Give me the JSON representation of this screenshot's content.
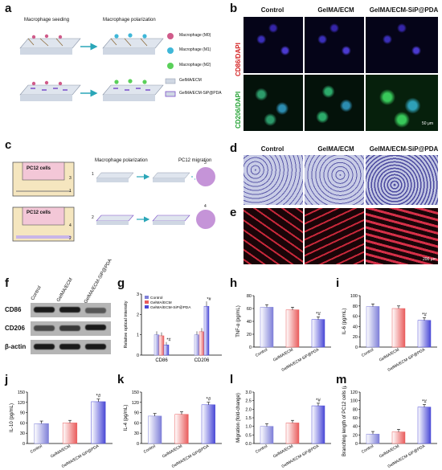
{
  "panel_letters": {
    "a": "a",
    "b": "b",
    "c": "c",
    "d": "d",
    "e": "e",
    "f": "f",
    "g": "g",
    "h": "h",
    "i": "i",
    "j": "j",
    "k": "k",
    "l": "l",
    "m": "m"
  },
  "panel_a": {
    "seeding": "Macrophage seeding",
    "polarization": "Macrophage polarization",
    "legend": [
      "Macrophage (M0)",
      "Macrophage (M1)",
      "Macrophage (M2)",
      "GelMA/ECM",
      "GelMA/ECM-SiP@PDA"
    ]
  },
  "columns": [
    "Control",
    "GelMA/ECM",
    "GelMA/ECM-SiP@PDA"
  ],
  "panel_b": {
    "row1_label": "CD86/DAPI",
    "row2_label": "CD206/DAPI",
    "scale": "50 μm"
  },
  "panel_c": {
    "pc12": "PC12 cells",
    "polarization": "Macrophage polarization",
    "migration": "PC12 migration",
    "nums": [
      "1",
      "2",
      "3",
      "4",
      "3",
      "1",
      "4",
      "2"
    ]
  },
  "panel_e": {
    "scale": "200 μm"
  },
  "panel_f": {
    "lanes": [
      "Control",
      "GelMA/ECM",
      "GelMA/ECM-SiP@PDA"
    ],
    "rows": [
      "CD86",
      "CD206",
      "β-actin"
    ]
  },
  "colors": {
    "control": "#7e7fd8",
    "gelma": "#e95c5c",
    "sip": "#4a49d6"
  },
  "chart_data": [
    {
      "id": "g",
      "type": "bar",
      "ylabel": "Relative optical intensity",
      "categories": [
        "CD86",
        "CD206"
      ],
      "ylim": [
        0,
        3
      ],
      "yticks": [
        "0",
        "1",
        "2",
        "3"
      ],
      "series": [
        {
          "name": "Control",
          "values": [
            1.0,
            1.0
          ]
        },
        {
          "name": "GelMA/ECM",
          "values": [
            0.95,
            1.15
          ]
        },
        {
          "name": "GelMA/ECM-SiP@PDA",
          "values": [
            0.5,
            2.4
          ]
        }
      ],
      "annotations": [
        "*#",
        "*#"
      ]
    },
    {
      "id": "h",
      "type": "bar",
      "ylabel": "TNF-α (pg/mL)",
      "categories": [
        "Control",
        "GelMA/ECM",
        "GelMA/ECM-SiP@PDA"
      ],
      "values": [
        62,
        58,
        43
      ],
      "ylim": [
        0,
        80
      ],
      "yticks": [
        "0",
        "20",
        "40",
        "60",
        "80"
      ],
      "annotation": "*#"
    },
    {
      "id": "i",
      "type": "bar",
      "ylabel": "IL-6 (pg/mL)",
      "categories": [
        "Control",
        "GelMA/ECM",
        "GelMA/ECM-SiP@PDA"
      ],
      "values": [
        79,
        75,
        52
      ],
      "ylim": [
        0,
        100
      ],
      "yticks": [
        "0",
        "20",
        "40",
        "60",
        "80",
        "100"
      ],
      "annotation": "*#"
    },
    {
      "id": "j",
      "type": "bar",
      "ylabel": "IL-10 (pg/mL)",
      "categories": [
        "Control",
        "GelMA/ECM",
        "GelMA/ECM-SiP@PDA"
      ],
      "values": [
        58,
        60,
        122
      ],
      "ylim": [
        0,
        150
      ],
      "yticks": [
        "0",
        "30",
        "60",
        "90",
        "120",
        "150"
      ],
      "annotation": "*#"
    },
    {
      "id": "k",
      "type": "bar",
      "ylabel": "IL-4 (pg/mL)",
      "categories": [
        "Control",
        "GelMA/ECM",
        "GelMA/ECM-SiP@PDA"
      ],
      "values": [
        80,
        85,
        113
      ],
      "ylim": [
        0,
        150
      ],
      "yticks": [
        "0",
        "30",
        "60",
        "90",
        "120",
        "150"
      ],
      "annotation": "*#"
    },
    {
      "id": "l",
      "type": "bar",
      "ylabel": "Migration (fold-change)",
      "categories": [
        "Control",
        "GelMA/ECM",
        "GelMA/ECM-SiP@PDA"
      ],
      "values": [
        1.0,
        1.2,
        2.2
      ],
      "ylim": [
        0,
        3.0
      ],
      "yticks": [
        "0.0",
        "0.5",
        "1.0",
        "1.5",
        "2.0",
        "2.5",
        "3.0"
      ],
      "annotation": "*#"
    },
    {
      "id": "m",
      "type": "bar",
      "ylabel": "Branching length of PC12 cells (μm)",
      "categories": [
        "Control",
        "GelMA/ECM",
        "GelMA/ECM-SiP@PDA"
      ],
      "values": [
        22,
        27,
        85
      ],
      "ylim": [
        0,
        120
      ],
      "yticks": [
        "0",
        "20",
        "40",
        "60",
        "80",
        "100",
        "120"
      ],
      "annotation": "*#"
    }
  ]
}
